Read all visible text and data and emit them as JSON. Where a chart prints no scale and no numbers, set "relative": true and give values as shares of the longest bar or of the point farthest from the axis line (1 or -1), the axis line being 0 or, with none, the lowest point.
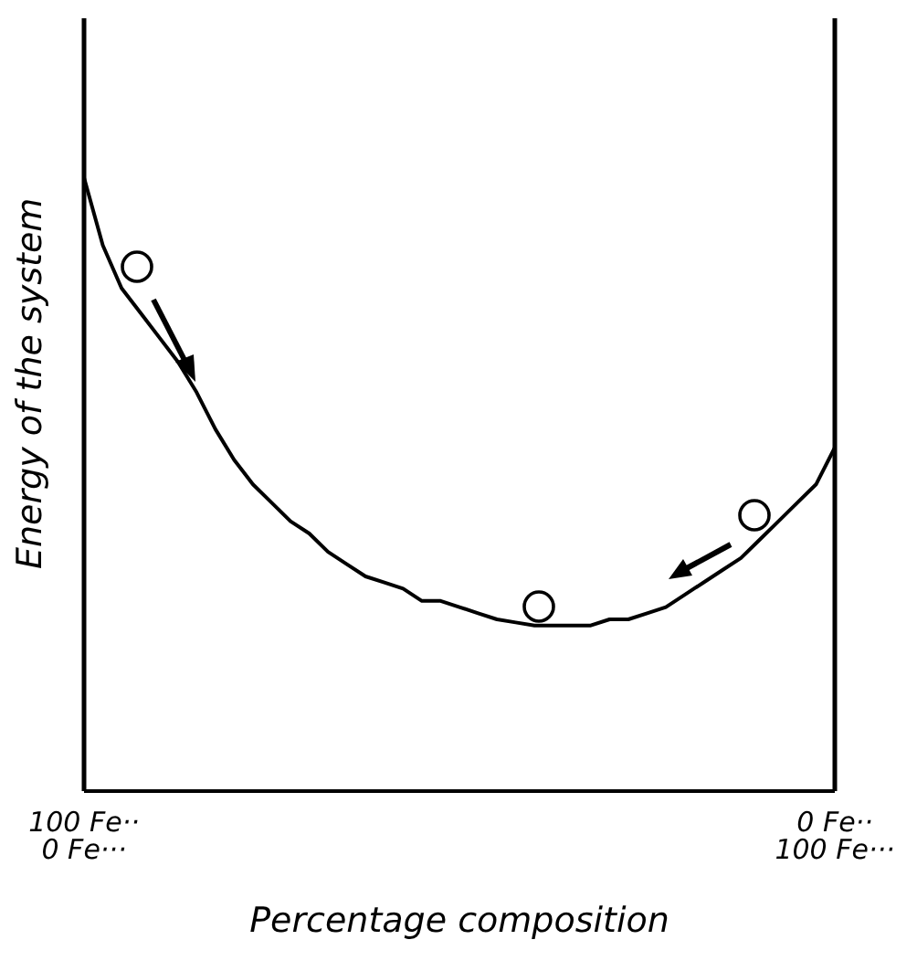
{
  "chart_data": {
    "type": "line",
    "relative": true,
    "xlabel": "Percentage composition",
    "ylabel": "Energy of the system",
    "categories": [
      "100 Fe··\n0 Fe···",
      null,
      null,
      null,
      null,
      null,
      null,
      null,
      null,
      null,
      null,
      null,
      null,
      null,
      null,
      null,
      null,
      null,
      null,
      null,
      null,
      null,
      null,
      null,
      null,
      null,
      null,
      null,
      null,
      null,
      null,
      null,
      null,
      null,
      null,
      null,
      null,
      null,
      null,
      null,
      "0 Fe··\n100 Fe···"
    ],
    "grid": false,
    "series": [
      {
        "color": "#000000",
        "marker": "none",
        "values": [
          1.0,
          0.89,
          0.82,
          0.78,
          0.74,
          0.7,
          0.65,
          0.59,
          0.54,
          0.5,
          0.47,
          0.44,
          0.42,
          0.39,
          0.37,
          0.35,
          0.34,
          0.33,
          0.31,
          0.31,
          0.3,
          0.29,
          0.28,
          0.275,
          0.27,
          0.27,
          0.27,
          0.27,
          0.28,
          0.28,
          0.29,
          0.3,
          0.32,
          0.34,
          0.36,
          0.38,
          0.41,
          0.44,
          0.47,
          0.5,
          0.56
        ]
      }
    ]
  }
}
